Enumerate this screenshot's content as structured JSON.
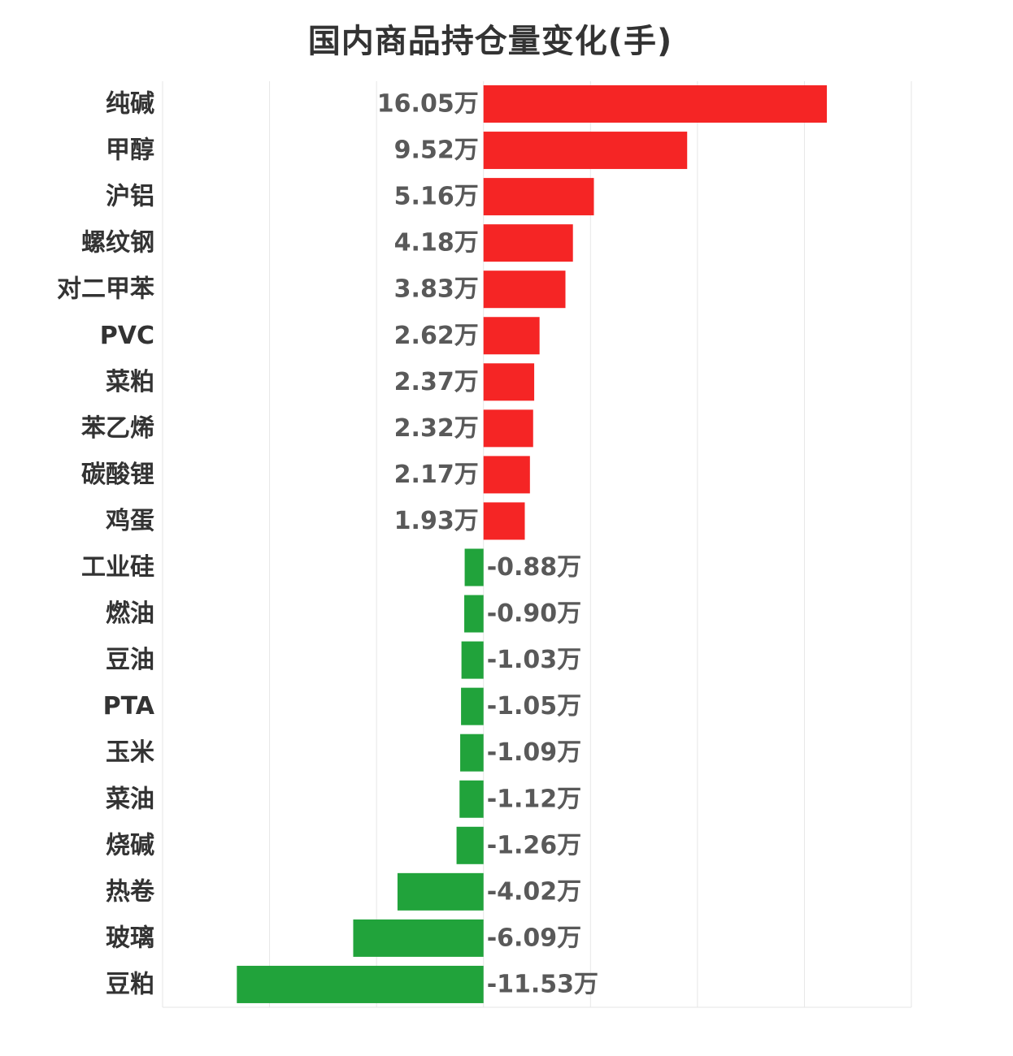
{
  "chart_data": {
    "type": "bar",
    "orientation": "horizontal",
    "title": "国内商品持仓量变化(手)",
    "categories": [
      "纯碱",
      "甲醇",
      "沪铝",
      "螺纹钢",
      "对二甲苯",
      "PVC",
      "菜粕",
      "苯乙烯",
      "碳酸锂",
      "鸡蛋",
      "工业硅",
      "燃油",
      "豆油",
      "PTA",
      "玉米",
      "菜油",
      "烧碱",
      "热卷",
      "玻璃",
      "豆粕"
    ],
    "values": [
      16.05,
      9.52,
      5.16,
      4.18,
      3.83,
      2.62,
      2.37,
      2.32,
      2.17,
      1.93,
      -0.88,
      -0.9,
      -1.03,
      -1.05,
      -1.09,
      -1.12,
      -1.26,
      -4.02,
      -6.09,
      -11.53
    ],
    "value_labels": [
      "16.05万",
      "9.52万",
      "5.16万",
      "4.18万",
      "3.83万",
      "2.62万",
      "2.37万",
      "2.32万",
      "2.17万",
      "1.93万",
      "-0.88万",
      "-0.90万",
      "-1.03万",
      "-1.05万",
      "-1.09万",
      "-1.12万",
      "-1.26万",
      "-4.02万",
      "-6.09万",
      "-11.53万"
    ],
    "xlim": [
      -15,
      20
    ],
    "grid": true,
    "colors": {
      "positive": "#f52525",
      "negative": "#21a33b",
      "grid": "#e6e6e6",
      "title": "#333333",
      "category_text": "#333333",
      "value_text": "#595959"
    }
  }
}
